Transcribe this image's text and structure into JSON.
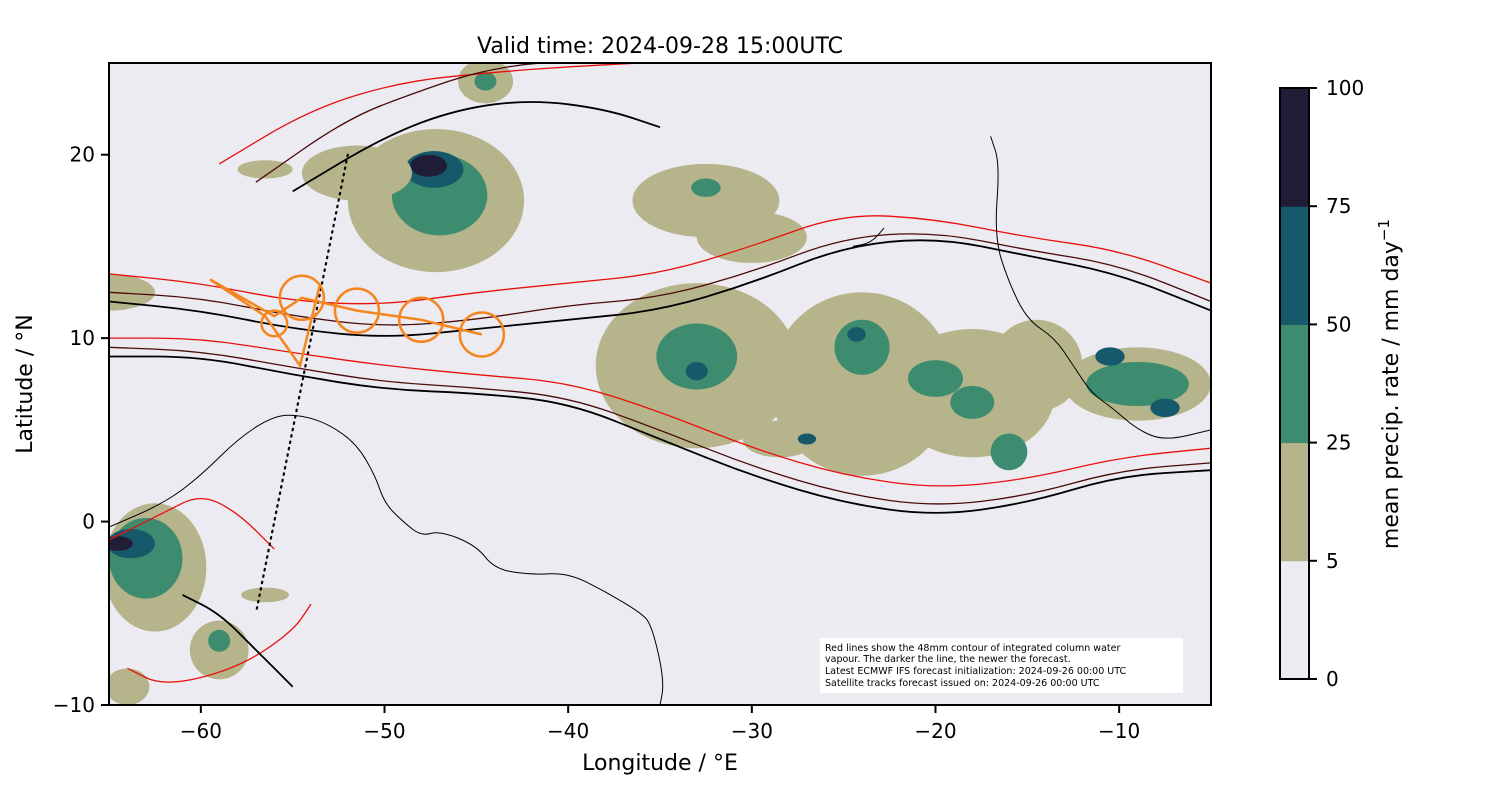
{
  "chart_data": {
    "type": "heatmap",
    "title": "Valid time: 2024-09-28 15:00UTC",
    "xlabel": "Longitude / °E",
    "ylabel": "Latitude / °N",
    "xlim": [
      -65,
      -5
    ],
    "ylim": [
      -10,
      25
    ],
    "x_ticks": [
      {
        "value": -60,
        "label": "−60"
      },
      {
        "value": -50,
        "label": "−50"
      },
      {
        "value": -40,
        "label": "−40"
      },
      {
        "value": -30,
        "label": "−30"
      },
      {
        "value": -20,
        "label": "−20"
      },
      {
        "value": -10,
        "label": "−10"
      }
    ],
    "y_ticks": [
      {
        "value": -10,
        "label": "−10"
      },
      {
        "value": 0,
        "label": "0"
      },
      {
        "value": 10,
        "label": "10"
      },
      {
        "value": 20,
        "label": "20"
      }
    ],
    "colorbar": {
      "label": "mean precip. rate / mm day",
      "label_superscript": "−1",
      "levels": [
        0,
        5,
        25,
        50,
        75,
        100
      ],
      "tick_labels": [
        "0",
        "5",
        "25",
        "50",
        "75",
        "100"
      ],
      "colors": [
        "#ecebf1",
        "#b6b48b",
        "#3d8c6f",
        "#15596a",
        "#201d37"
      ]
    },
    "precip_regions": [
      {
        "level": 1,
        "lon": -47.2,
        "lat": 17.5,
        "rlon": 4.8,
        "rlat": 3.9
      },
      {
        "level": 2,
        "lon": -47.0,
        "lat": 17.8,
        "rlon": 2.6,
        "rlat": 2.2
      },
      {
        "level": 3,
        "lon": -47.3,
        "lat": 19.2,
        "rlon": 1.6,
        "rlat": 1.0
      },
      {
        "level": 4,
        "lon": -47.6,
        "lat": 19.4,
        "rlon": 1.0,
        "rlat": 0.6
      },
      {
        "level": 1,
        "lon": -51.5,
        "lat": 19.0,
        "rlon": 3.0,
        "rlat": 1.5
      },
      {
        "level": 1,
        "lon": -32.5,
        "lat": 17.5,
        "rlon": 4.0,
        "rlat": 2.0
      },
      {
        "level": 2,
        "lon": -32.5,
        "lat": 18.2,
        "rlon": 0.8,
        "rlat": 0.5
      },
      {
        "level": 1,
        "lon": -30.0,
        "lat": 15.5,
        "rlon": 3.0,
        "rlat": 1.4
      },
      {
        "level": 1,
        "lon": -33.0,
        "lat": 8.5,
        "rlon": 5.5,
        "rlat": 4.5
      },
      {
        "level": 2,
        "lon": -33.0,
        "lat": 9.0,
        "rlon": 2.2,
        "rlat": 1.8
      },
      {
        "level": 3,
        "lon": -33.0,
        "lat": 8.2,
        "rlon": 0.6,
        "rlat": 0.5
      },
      {
        "level": 1,
        "lon": -24.0,
        "lat": 7.5,
        "rlon": 5.0,
        "rlat": 5.0
      },
      {
        "level": 2,
        "lon": -24.0,
        "lat": 9.5,
        "rlon": 1.5,
        "rlat": 1.5
      },
      {
        "level": 3,
        "lon": -24.3,
        "lat": 10.2,
        "rlon": 0.5,
        "rlat": 0.4
      },
      {
        "level": 1,
        "lon": -18.0,
        "lat": 7.0,
        "rlon": 4.5,
        "rlat": 3.5
      },
      {
        "level": 2,
        "lon": -20.0,
        "lat": 7.8,
        "rlon": 1.5,
        "rlat": 1.0
      },
      {
        "level": 2,
        "lon": -18.0,
        "lat": 6.5,
        "rlon": 1.2,
        "rlat": 0.9
      },
      {
        "level": 2,
        "lon": -16.0,
        "lat": 3.8,
        "rlon": 1.0,
        "rlat": 1.0
      },
      {
        "level": 1,
        "lon": -14.5,
        "lat": 8.5,
        "rlon": 2.5,
        "rlat": 2.5
      },
      {
        "level": 1,
        "lon": -28.5,
        "lat": 4.5,
        "rlon": 2.0,
        "rlat": 1.0
      },
      {
        "level": 3,
        "lon": -27.0,
        "lat": 4.5,
        "rlon": 0.5,
        "rlat": 0.3
      },
      {
        "level": 1,
        "lon": -9.0,
        "lat": 7.5,
        "rlon": 4.0,
        "rlat": 2.0
      },
      {
        "level": 2,
        "lon": -9.0,
        "lat": 7.5,
        "rlon": 2.8,
        "rlat": 1.2
      },
      {
        "level": 3,
        "lon": -10.5,
        "lat": 9.0,
        "rlon": 0.8,
        "rlat": 0.5
      },
      {
        "level": 3,
        "lon": -7.5,
        "lat": 6.2,
        "rlon": 0.8,
        "rlat": 0.5
      },
      {
        "level": 1,
        "lon": -62.5,
        "lat": -2.5,
        "rlon": 2.8,
        "rlat": 3.5
      },
      {
        "level": 2,
        "lon": -63.0,
        "lat": -2.0,
        "rlon": 2.0,
        "rlat": 2.2
      },
      {
        "level": 3,
        "lon": -63.8,
        "lat": -1.2,
        "rlon": 1.3,
        "rlat": 0.8
      },
      {
        "level": 4,
        "lon": -64.5,
        "lat": -1.2,
        "rlon": 0.8,
        "rlat": 0.4
      },
      {
        "level": 1,
        "lon": -59.0,
        "lat": -7.0,
        "rlon": 1.6,
        "rlat": 1.6
      },
      {
        "level": 2,
        "lon": -59.0,
        "lat": -6.5,
        "rlon": 0.6,
        "rlat": 0.6
      },
      {
        "level": 1,
        "lon": -65.0,
        "lat": 12.5,
        "rlon": 2.5,
        "rlat": 1.0
      },
      {
        "level": 1,
        "lon": -56.5,
        "lat": -4.0,
        "rlon": 1.3,
        "rlat": 0.4
      },
      {
        "level": 1,
        "lon": -64.0,
        "lat": -9.0,
        "rlon": 1.2,
        "rlat": 1.0
      },
      {
        "level": 1,
        "lon": -56.5,
        "lat": 19.2,
        "rlon": 1.5,
        "rlat": 0.5
      },
      {
        "level": 1,
        "lon": -44.5,
        "lat": 24.0,
        "rlon": 1.5,
        "rlat": 1.2
      },
      {
        "level": 2,
        "lon": -44.5,
        "lat": 24.0,
        "rlon": 0.6,
        "rlat": 0.5
      }
    ],
    "iwv_contours": [
      {
        "age": "newest",
        "color": "#000000",
        "lon": [
          -65,
          -60,
          -55,
          -50,
          -45,
          -40,
          -35,
          -30,
          -25,
          -20,
          -15,
          -10,
          -5
        ],
        "lat": [
          12.0,
          11.5,
          10.5,
          10.0,
          10.5,
          11.0,
          11.5,
          13.0,
          15.0,
          15.5,
          14.5,
          13.5,
          11.5
        ]
      },
      {
        "age": "newest",
        "color": "#000000",
        "lon": [
          -65,
          -60,
          -55,
          -50,
          -45,
          -40,
          -35,
          -30,
          -25,
          -20,
          -15,
          -10,
          -5
        ],
        "lat": [
          9.0,
          9.0,
          8.0,
          7.2,
          7.0,
          6.5,
          4.5,
          2.5,
          1.0,
          0.3,
          1.0,
          2.5,
          2.8
        ]
      },
      {
        "age": "older",
        "color": "#4a0a0a",
        "lon": [
          -65,
          -60,
          -55,
          -50,
          -45,
          -40,
          -35,
          -30,
          -25,
          -20,
          -15,
          -10,
          -5
        ],
        "lat": [
          12.5,
          12.2,
          11.2,
          10.6,
          11.0,
          11.8,
          12.2,
          13.6,
          15.5,
          15.8,
          14.8,
          14.0,
          12.0
        ]
      },
      {
        "age": "older",
        "color": "#4a0a0a",
        "lon": [
          -65,
          -60,
          -55,
          -50,
          -45,
          -40,
          -35,
          -30,
          -25,
          -20,
          -15,
          -10,
          -5
        ],
        "lat": [
          9.5,
          9.3,
          8.4,
          7.6,
          7.3,
          6.8,
          5.0,
          3.0,
          1.5,
          0.8,
          1.4,
          2.8,
          3.2
        ]
      },
      {
        "age": "oldest",
        "color": "#e8100c",
        "lon": [
          -65,
          -60,
          -55,
          -50,
          -45,
          -40,
          -35,
          -30,
          -25,
          -20,
          -15,
          -10,
          -5
        ],
        "lat": [
          13.5,
          13.0,
          12.0,
          11.8,
          12.5,
          13.0,
          13.5,
          15.0,
          16.8,
          16.5,
          15.5,
          14.8,
          13.0
        ]
      },
      {
        "age": "oldest",
        "color": "#e8100c",
        "lon": [
          -65,
          -60,
          -55,
          -50,
          -45,
          -40,
          -35,
          -30,
          -25,
          -20,
          -15,
          -10,
          -5
        ],
        "lat": [
          10.0,
          10.0,
          9.2,
          8.5,
          8.0,
          7.6,
          6.0,
          4.0,
          2.5,
          1.8,
          2.3,
          3.5,
          4.0
        ]
      },
      {
        "age": "older",
        "color": "#4a0a0a",
        "lon": [
          -57,
          -52,
          -48,
          -45,
          -42,
          -40
        ],
        "lat": [
          18.5,
          22.0,
          23.5,
          24.5,
          25.0,
          25.0
        ]
      },
      {
        "age": "oldest",
        "color": "#e8100c",
        "lon": [
          -59,
          -54,
          -49,
          -44,
          -40,
          -36
        ],
        "lat": [
          19.5,
          22.5,
          24.0,
          24.5,
          24.8,
          25.0
        ]
      },
      {
        "age": "newest",
        "color": "#000000",
        "lon": [
          -55,
          -50,
          -46,
          -42,
          -38,
          -35
        ],
        "lat": [
          18.0,
          21.0,
          22.5,
          23.0,
          22.5,
          21.5
        ]
      },
      {
        "age": "oldest",
        "color": "#e8100c",
        "lon": [
          -65,
          -62,
          -60,
          -58,
          -56
        ],
        "lat": [
          -1.0,
          0.5,
          1.5,
          0.5,
          -1.5
        ]
      },
      {
        "age": "newest",
        "color": "#000000",
        "lon": [
          -61,
          -59,
          -57,
          -55
        ],
        "lat": [
          -4.0,
          -5.0,
          -7.0,
          -9.0
        ]
      },
      {
        "age": "oldest",
        "color": "#e8100c",
        "lon": [
          -64,
          -62,
          -58,
          -55,
          -54
        ],
        "lat": [
          -8.0,
          -9.0,
          -8.0,
          -6.0,
          -4.5
        ]
      }
    ],
    "coastlines": [
      {
        "name": "south-america",
        "lon": [
          -65,
          -62,
          -60,
          -58,
          -56,
          -54.5,
          -53,
          -51.5,
          -50.5,
          -50,
          -49,
          -48,
          -47,
          -45,
          -44,
          -42,
          -40,
          -38,
          -36,
          -35.5,
          -35,
          -34.8,
          -35
        ],
        "lat": [
          -0.3,
          1.0,
          2.5,
          4.5,
          5.8,
          5.8,
          5.3,
          4.2,
          2.5,
          1.0,
          0.0,
          -0.8,
          -0.5,
          -1.3,
          -2.6,
          -2.9,
          -2.8,
          -3.8,
          -5.0,
          -5.6,
          -7.5,
          -9.0,
          -10
        ]
      },
      {
        "name": "west-africa",
        "lon": [
          -17.0,
          -16.5,
          -16.8,
          -16.0,
          -15.0,
          -13.5,
          -12.5,
          -11.5,
          -10.5,
          -9.0,
          -7.5,
          -5.0
        ],
        "lat": [
          21.0,
          19.5,
          15.5,
          13.0,
          11.0,
          10.0,
          8.5,
          7.0,
          6.3,
          5.0,
          4.4,
          5.0
        ]
      },
      {
        "name": "cape-verde",
        "lon": [
          -24.5,
          -23.5,
          -22.8
        ],
        "lat": [
          15.0,
          15.2,
          16.0
        ]
      }
    ],
    "satellite_track_forecast": [
      {
        "lon": -59.5,
        "lat": 13.2
      },
      {
        "lon": -56.0,
        "lat": 11.2
      },
      {
        "lon": -54.5,
        "lat": 12.2
      },
      {
        "lon": -51.5,
        "lat": 11.5
      },
      {
        "lon": -48.0,
        "lat": 11.0
      },
      {
        "lon": -44.7,
        "lat": 10.2
      }
    ],
    "satellite_track_markers": [
      {
        "lon": -56.0,
        "lat": 10.8,
        "r": 0.7
      },
      {
        "lon": -54.5,
        "lat": 12.2,
        "r": 1.2
      },
      {
        "lon": -51.5,
        "lat": 11.5,
        "r": 1.2
      },
      {
        "lon": -48.0,
        "lat": 11.0,
        "r": 1.2
      },
      {
        "lon": -44.7,
        "lat": 10.2,
        "r": 1.2
      }
    ],
    "satellite_track_flyout": [
      {
        "lon": -59.5,
        "lat": 13.2
      },
      {
        "lon": -56.5,
        "lat": 11.2
      },
      {
        "lon": -54.6,
        "lat": 8.5
      },
      {
        "lon": -53.5,
        "lat": 13.0
      }
    ],
    "dotted_track": [
      {
        "lon": -52.0,
        "lat": 20.0
      },
      {
        "lon": -54.0,
        "lat": 10.0
      },
      {
        "lon": -57.0,
        "lat": -5.0
      }
    ],
    "annotation_lines": [
      "Red lines show the 48mm contour of integrated column water",
      "vapour. The darker the line, the newer the forecast.",
      "Latest ECMWF IFS forecast initialization: 2024-09-26 00:00 UTC",
      "Satellite tracks forecast issued on: 2024-09-26 00:00 UTC"
    ],
    "track_color": "#f5861f",
    "background_color": "#ecebf1",
    "grid": false,
    "legend": "none"
  }
}
